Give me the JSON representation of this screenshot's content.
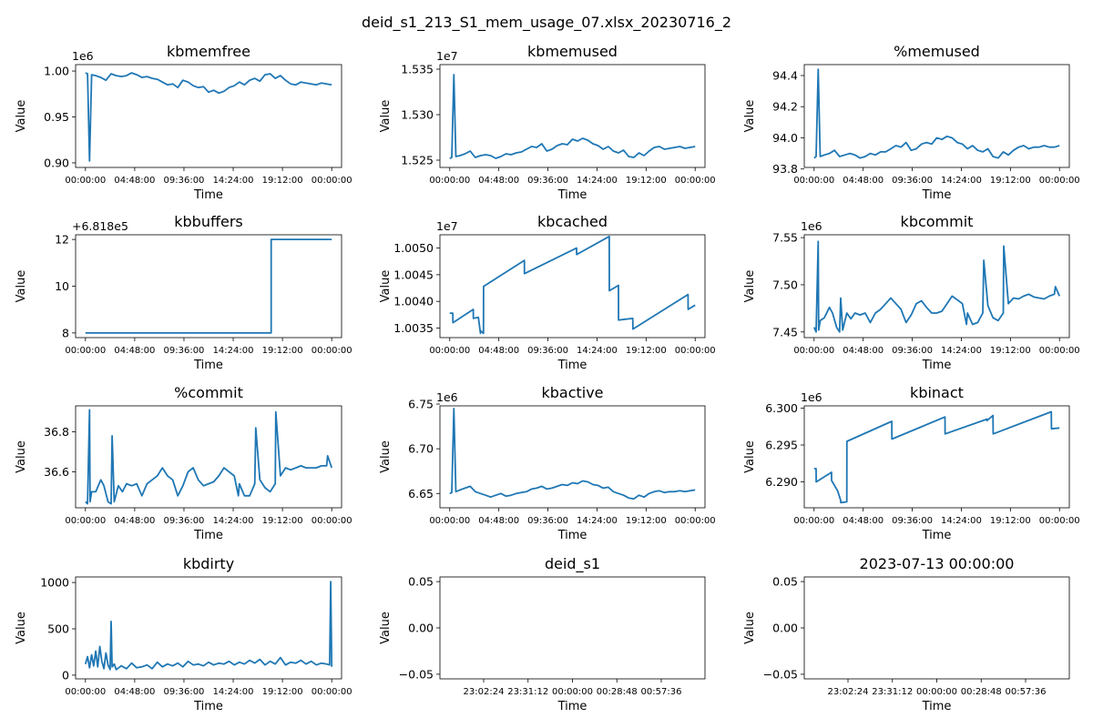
{
  "figure": {
    "suptitle": "deid_s1_213_S1_mem_usage_07.xlsx_20230716_2",
    "line_color": "#1f77b4"
  },
  "chart_data": [
    {
      "type": "line",
      "title": "kbmemfree",
      "xlabel": "Time",
      "ylabel": "Value",
      "offset_text": "1e6",
      "xticks": [
        "00:00:00",
        "04:48:00",
        "09:36:00",
        "14:24:00",
        "19:12:00",
        "00:00:00"
      ],
      "yticks": [
        0.9,
        0.95,
        1.0
      ],
      "ytick_labels": [
        "0.90",
        "0.95",
        "1.00"
      ],
      "ylim": [
        0.895,
        1.007
      ],
      "x": [
        0,
        0.2,
        0.4,
        0.6,
        1,
        1.5,
        2,
        2.5,
        3,
        3.5,
        4,
        4.5,
        5,
        5.5,
        6,
        6.5,
        7,
        7.5,
        8,
        8.5,
        9,
        9.5,
        10,
        10.5,
        11,
        11.5,
        12,
        12.5,
        13,
        13.5,
        14,
        14.5,
        15,
        15.5,
        16,
        16.5,
        17,
        17.5,
        18,
        18.5,
        19,
        19.5,
        20,
        20.5,
        21,
        21.5,
        22,
        22.5,
        23,
        23.5,
        24
      ],
      "values": [
        0.998,
        0.997,
        0.902,
        0.996,
        0.995,
        0.993,
        0.99,
        0.997,
        0.995,
        0.994,
        0.995,
        0.998,
        0.996,
        0.993,
        0.994,
        0.992,
        0.991,
        0.988,
        0.985,
        0.986,
        0.982,
        0.99,
        0.988,
        0.984,
        0.982,
        0.983,
        0.977,
        0.979,
        0.976,
        0.978,
        0.982,
        0.984,
        0.988,
        0.985,
        0.99,
        0.992,
        0.989,
        0.996,
        0.997,
        0.992,
        0.995,
        0.99,
        0.986,
        0.985,
        0.988,
        0.987,
        0.986,
        0.985,
        0.987,
        0.986,
        0.985
      ]
    },
    {
      "type": "line",
      "title": "kbmemused",
      "xlabel": "Time",
      "ylabel": "Value",
      "offset_text": "1e7",
      "xticks": [
        "00:00:00",
        "04:48:00",
        "09:36:00",
        "14:24:00",
        "19:12:00",
        "00:00:00"
      ],
      "yticks": [
        1.525,
        1.53,
        1.535
      ],
      "ytick_labels": [
        "1.525",
        "1.530",
        "1.535"
      ],
      "ylim": [
        1.5242,
        1.5355
      ],
      "x": [
        0,
        0.2,
        0.4,
        0.6,
        1,
        1.5,
        2,
        2.5,
        3,
        3.5,
        4,
        4.5,
        5,
        5.5,
        6,
        6.5,
        7,
        7.5,
        8,
        8.5,
        9,
        9.5,
        10,
        10.5,
        11,
        11.5,
        12,
        12.5,
        13,
        13.5,
        14,
        14.5,
        15,
        15.5,
        16,
        16.5,
        17,
        17.5,
        18,
        18.5,
        19,
        19.5,
        20,
        20.5,
        21,
        21.5,
        22,
        22.5,
        23,
        23.5,
        24
      ],
      "values": [
        1.5252,
        1.5253,
        1.5344,
        1.5254,
        1.5255,
        1.5257,
        1.526,
        1.5253,
        1.5255,
        1.5256,
        1.5255,
        1.5252,
        1.5254,
        1.5257,
        1.5256,
        1.5258,
        1.5259,
        1.5262,
        1.5265,
        1.5264,
        1.5268,
        1.526,
        1.5262,
        1.5266,
        1.5268,
        1.5267,
        1.5273,
        1.5271,
        1.5274,
        1.5272,
        1.5268,
        1.5266,
        1.5262,
        1.5265,
        1.526,
        1.5258,
        1.5261,
        1.5254,
        1.5253,
        1.5258,
        1.5255,
        1.526,
        1.5264,
        1.5265,
        1.5262,
        1.5263,
        1.5264,
        1.5265,
        1.5263,
        1.5264,
        1.5265
      ]
    },
    {
      "type": "line",
      "title": "%memused",
      "xlabel": "Time",
      "ylabel": "Value",
      "offset_text": "",
      "xticks": [
        "00:00:00",
        "04:48:00",
        "09:36:00",
        "14:24:00",
        "19:12:00",
        "00:00:00"
      ],
      "yticks": [
        93.8,
        94.0,
        94.2,
        94.4
      ],
      "ytick_labels": [
        "93.8",
        "94.0",
        "94.2",
        "94.4"
      ],
      "ylim": [
        93.81,
        94.47
      ],
      "x": [
        0,
        0.2,
        0.4,
        0.6,
        1,
        1.5,
        2,
        2.5,
        3,
        3.5,
        4,
        4.5,
        5,
        5.5,
        6,
        6.5,
        7,
        7.5,
        8,
        8.5,
        9,
        9.5,
        10,
        10.5,
        11,
        11.5,
        12,
        12.5,
        13,
        13.5,
        14,
        14.5,
        15,
        15.5,
        16,
        16.5,
        17,
        17.5,
        18,
        18.5,
        19,
        19.5,
        20,
        20.5,
        21,
        21.5,
        22,
        22.5,
        23,
        23.5,
        24
      ],
      "values": [
        93.87,
        93.88,
        94.44,
        93.88,
        93.89,
        93.9,
        93.92,
        93.88,
        93.89,
        93.9,
        93.89,
        93.87,
        93.88,
        93.9,
        93.89,
        93.91,
        93.91,
        93.93,
        93.95,
        93.94,
        93.97,
        93.92,
        93.93,
        93.96,
        93.97,
        93.96,
        94.0,
        93.99,
        94.01,
        94.0,
        93.97,
        93.96,
        93.93,
        93.95,
        93.92,
        93.91,
        93.93,
        93.88,
        93.87,
        93.91,
        93.89,
        93.92,
        93.94,
        93.95,
        93.93,
        93.94,
        93.94,
        93.95,
        93.94,
        93.94,
        93.95
      ]
    },
    {
      "type": "line",
      "title": "kbbuffers",
      "xlabel": "Time",
      "ylabel": "Value",
      "offset_text": "+6.818e5",
      "xticks": [
        "00:00:00",
        "04:48:00",
        "09:36:00",
        "14:24:00",
        "19:12:00",
        "00:00:00"
      ],
      "yticks": [
        8,
        10,
        12
      ],
      "ytick_labels": [
        "8",
        "10",
        "12"
      ],
      "ylim": [
        7.8,
        12.2
      ],
      "x": [
        0,
        18.1,
        18.1,
        24
      ],
      "values": [
        8,
        8,
        12,
        12
      ]
    },
    {
      "type": "line",
      "title": "kbcached",
      "xlabel": "Time",
      "ylabel": "Value",
      "offset_text": "1e7",
      "xticks": [
        "00:00:00",
        "04:48:00",
        "09:36:00",
        "14:24:00",
        "19:12:00",
        "00:00:00"
      ],
      "yticks": [
        1.0035,
        1.004,
        1.0045,
        1.005
      ],
      "ytick_labels": [
        "1.0035",
        "1.0040",
        "1.0045",
        "1.0050"
      ],
      "ylim": [
        1.00332,
        1.00525
      ],
      "x": [
        0,
        0.3,
        0.31,
        2.3,
        2.31,
        2.8,
        3.0,
        3.01,
        3.3,
        3.31,
        7.3,
        7.31,
        12.4,
        12.41,
        15.6,
        15.61,
        16.5,
        16.51,
        17.9,
        17.91,
        23.3,
        23.31,
        24
      ],
      "values": [
        1.00378,
        1.00378,
        1.0036,
        1.00385,
        1.00368,
        1.0037,
        1.0034,
        1.00345,
        1.0034,
        1.00428,
        1.00477,
        1.00452,
        1.005,
        1.00488,
        1.00522,
        1.0042,
        1.0043,
        1.00365,
        1.00368,
        1.00348,
        1.00413,
        1.00385,
        1.00393
      ]
    },
    {
      "type": "line",
      "title": "kbcommit",
      "xlabel": "Time",
      "ylabel": "Value",
      "offset_text": "1e6",
      "xticks": [
        "00:00:00",
        "04:48:00",
        "09:36:00",
        "14:24:00",
        "19:12:00",
        "00:00:00"
      ],
      "yticks": [
        7.45,
        7.5,
        7.55
      ],
      "ytick_labels": [
        "7.45",
        "7.50",
        "7.55"
      ],
      "ylim": [
        7.444,
        7.553
      ],
      "x": [
        0,
        0.2,
        0.4,
        0.45,
        0.6,
        1.0,
        1.5,
        1.8,
        2.2,
        2.5,
        2.6,
        2.8,
        3.2,
        3.6,
        4,
        4.5,
        5,
        5.5,
        6,
        6.5,
        7,
        7.5,
        8,
        8.5,
        9,
        9.5,
        10,
        10.5,
        11,
        11.5,
        12,
        12.5,
        13,
        13.5,
        14,
        14.5,
        14.9,
        15,
        15.5,
        16,
        16.5,
        16.6,
        17,
        17.5,
        18,
        18.5,
        18.55,
        19,
        19.5,
        20,
        20.5,
        21,
        21.5,
        22,
        22.5,
        23,
        23.5,
        23.6,
        24
      ],
      "values": [
        7.455,
        7.45,
        7.546,
        7.452,
        7.462,
        7.465,
        7.476,
        7.47,
        7.455,
        7.45,
        7.486,
        7.452,
        7.47,
        7.464,
        7.47,
        7.468,
        7.47,
        7.46,
        7.47,
        7.474,
        7.48,
        7.486,
        7.48,
        7.474,
        7.46,
        7.468,
        7.48,
        7.483,
        7.476,
        7.47,
        7.47,
        7.472,
        7.48,
        7.488,
        7.484,
        7.48,
        7.458,
        7.47,
        7.458,
        7.46,
        7.47,
        7.526,
        7.478,
        7.465,
        7.462,
        7.47,
        7.541,
        7.48,
        7.486,
        7.485,
        7.488,
        7.49,
        7.487,
        7.486,
        7.485,
        7.488,
        7.49,
        7.498,
        7.488
      ]
    },
    {
      "type": "line",
      "title": "%commit",
      "xlabel": "Time",
      "ylabel": "Value",
      "offset_text": "",
      "xticks": [
        "00:00:00",
        "04:48:00",
        "09:36:00",
        "14:24:00",
        "19:12:00",
        "00:00:00"
      ],
      "yticks": [
        36.6,
        36.8
      ],
      "ytick_labels": [
        "36.6",
        "36.8"
      ],
      "ylim": [
        36.42,
        36.93
      ],
      "x": [
        0,
        0.2,
        0.4,
        0.45,
        0.6,
        1.0,
        1.5,
        1.8,
        2.2,
        2.5,
        2.6,
        2.8,
        3.2,
        3.6,
        4,
        4.5,
        5,
        5.5,
        6,
        6.5,
        7,
        7.5,
        8,
        8.5,
        9,
        9.5,
        10,
        10.5,
        11,
        11.5,
        12,
        12.5,
        13,
        13.5,
        14,
        14.5,
        14.9,
        15,
        15.5,
        16,
        16.5,
        16.6,
        17,
        17.5,
        18,
        18.5,
        18.55,
        19,
        19.5,
        20,
        20.5,
        21,
        21.5,
        22,
        22.5,
        23,
        23.5,
        23.6,
        24
      ],
      "values": [
        36.45,
        36.44,
        36.91,
        36.45,
        36.5,
        36.5,
        36.56,
        36.53,
        36.45,
        36.44,
        36.78,
        36.45,
        36.53,
        36.5,
        36.54,
        36.53,
        36.54,
        36.48,
        36.54,
        36.56,
        36.58,
        36.62,
        36.58,
        36.56,
        36.48,
        36.53,
        36.6,
        36.62,
        36.56,
        36.53,
        36.54,
        36.55,
        36.58,
        36.62,
        36.6,
        36.58,
        36.48,
        36.54,
        36.48,
        36.48,
        36.54,
        36.82,
        36.56,
        36.52,
        36.5,
        36.54,
        36.9,
        36.58,
        36.62,
        36.61,
        36.62,
        36.63,
        36.62,
        36.62,
        36.62,
        36.63,
        36.63,
        36.68,
        36.62
      ]
    },
    {
      "type": "line",
      "title": "kbactive",
      "xlabel": "Time",
      "ylabel": "Value",
      "offset_text": "1e6",
      "xticks": [
        "00:00:00",
        "04:48:00",
        "09:36:00",
        "14:24:00",
        "19:12:00",
        "00:00:00"
      ],
      "yticks": [
        6.65,
        6.7,
        6.75
      ],
      "ytick_labels": [
        "6.65",
        "6.70",
        "6.75"
      ],
      "ylim": [
        6.634,
        6.748
      ],
      "x": [
        0,
        0.2,
        0.4,
        0.6,
        1,
        1.5,
        2,
        2.5,
        3,
        3.5,
        4,
        4.5,
        5,
        5.5,
        6,
        6.5,
        7,
        7.5,
        8,
        8.5,
        9,
        9.5,
        10,
        10.5,
        11,
        11.5,
        12,
        12.5,
        13,
        13.5,
        14,
        14.5,
        15,
        15.5,
        16,
        16.5,
        17,
        17.5,
        18,
        18.5,
        19,
        19.5,
        20,
        20.5,
        21,
        21.5,
        22,
        22.5,
        23,
        23.5,
        24
      ],
      "values": [
        6.65,
        6.651,
        6.745,
        6.652,
        6.654,
        6.656,
        6.658,
        6.652,
        6.65,
        6.648,
        6.646,
        6.648,
        6.65,
        6.647,
        6.648,
        6.65,
        6.651,
        6.652,
        6.655,
        6.656,
        6.658,
        6.655,
        6.656,
        6.658,
        6.66,
        6.659,
        6.662,
        6.661,
        6.664,
        6.663,
        6.66,
        6.659,
        6.656,
        6.657,
        6.652,
        6.65,
        6.648,
        6.645,
        6.644,
        6.648,
        6.646,
        6.65,
        6.652,
        6.653,
        6.651,
        6.652,
        6.652,
        6.653,
        6.652,
        6.653,
        6.654
      ]
    },
    {
      "type": "line",
      "title": "kbinact",
      "xlabel": "Time",
      "ylabel": "Value",
      "offset_text": "1e6",
      "xticks": [
        "00:00:00",
        "04:48:00",
        "09:36:00",
        "14:24:00",
        "19:12:00",
        "00:00:00"
      ],
      "yticks": [
        6.29,
        6.295,
        6.3
      ],
      "ytick_labels": [
        "6.290",
        "6.295",
        "6.300"
      ],
      "ylim": [
        6.2865,
        6.3003
      ],
      "x": [
        0,
        0.2,
        0.21,
        1.7,
        1.71,
        2.3,
        2.6,
        2.61,
        3.2,
        3.21,
        7.6,
        7.61,
        12.8,
        12.81,
        16.9,
        16.91,
        17.5,
        17.51,
        23.2,
        23.21,
        24
      ],
      "values": [
        6.2918,
        6.2918,
        6.29,
        6.2913,
        6.2902,
        6.2888,
        6.2875,
        6.2872,
        6.2873,
        6.2955,
        6.2982,
        6.2958,
        6.2988,
        6.2965,
        6.2985,
        6.2983,
        6.299,
        6.2965,
        6.2995,
        6.2972,
        6.2973
      ]
    },
    {
      "type": "line",
      "title": "kbdirty",
      "xlabel": "Time",
      "ylabel": "Value",
      "offset_text": "",
      "xticks": [
        "00:00:00",
        "04:48:00",
        "09:36:00",
        "14:24:00",
        "19:12:00",
        "00:00:00"
      ],
      "yticks": [
        0,
        500,
        1000
      ],
      "ytick_labels": [
        "0",
        "500",
        "1000"
      ],
      "ylim": [
        -40,
        1060
      ],
      "x": [
        0,
        0.2,
        0.4,
        0.6,
        0.8,
        1.0,
        1.2,
        1.4,
        1.6,
        1.8,
        2.0,
        2.2,
        2.4,
        2.5,
        2.6,
        2.8,
        3.0,
        3.5,
        4,
        4.5,
        5,
        5.5,
        6,
        6.5,
        7,
        7.5,
        8,
        8.5,
        9,
        9.5,
        10,
        10.5,
        11,
        11.5,
        12,
        12.5,
        13,
        13.5,
        14,
        14.5,
        15,
        15.5,
        16,
        16.5,
        17,
        17.5,
        18,
        18.5,
        19,
        19.5,
        20,
        20.5,
        21,
        21.5,
        22,
        22.5,
        23,
        23.5,
        23.8,
        23.9,
        24
      ],
      "values": [
        120,
        200,
        80,
        220,
        100,
        260,
        90,
        310,
        150,
        70,
        240,
        110,
        60,
        580,
        90,
        120,
        60,
        100,
        70,
        130,
        80,
        90,
        110,
        70,
        140,
        90,
        120,
        100,
        130,
        90,
        150,
        110,
        120,
        100,
        140,
        110,
        130,
        120,
        150,
        110,
        140,
        120,
        160,
        130,
        170,
        110,
        150,
        120,
        190,
        110,
        140,
        130,
        160,
        120,
        150,
        110,
        130,
        120,
        110,
        1010,
        90
      ]
    },
    {
      "type": "line",
      "title": "deid_s1",
      "xlabel": "Time",
      "ylabel": "Value",
      "offset_text": "",
      "xticks": [
        "23:02:24",
        "23:31:12",
        "00:00:00",
        "00:28:48",
        "00:57:36"
      ],
      "yticks": [
        -0.05,
        0.0,
        0.05
      ],
      "ytick_labels": [
        "−0.05",
        "0.00",
        "0.05"
      ],
      "ylim": [
        -0.055,
        0.055
      ],
      "x": [],
      "values": []
    },
    {
      "type": "line",
      "title": "2023-07-13 00:00:00",
      "xlabel": "Time",
      "ylabel": "Value",
      "offset_text": "",
      "xticks": [
        "23:02:24",
        "23:31:12",
        "00:00:00",
        "00:28:48",
        "00:57:36"
      ],
      "yticks": [
        -0.05,
        0.0,
        0.05
      ],
      "ytick_labels": [
        "−0.05",
        "0.00",
        "0.05"
      ],
      "ylim": [
        -0.055,
        0.055
      ],
      "x": [],
      "values": []
    }
  ]
}
